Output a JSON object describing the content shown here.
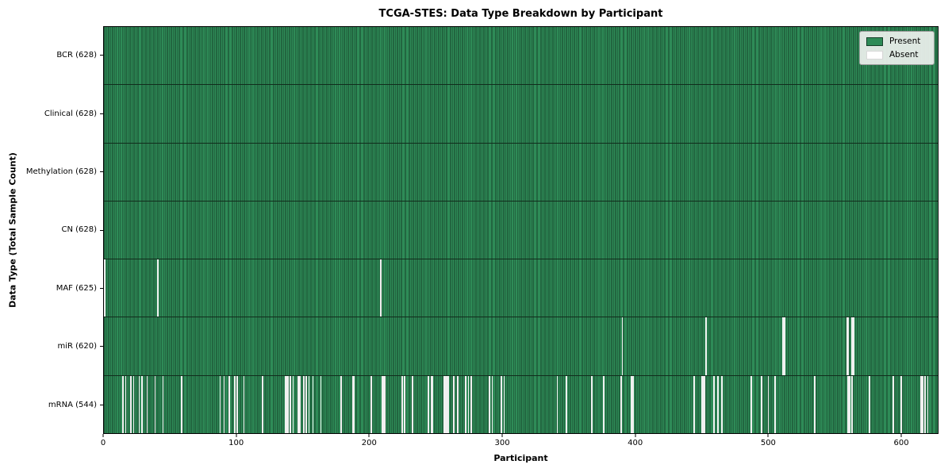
{
  "title": "TCGA-STES: Data Type Breakdown by Participant",
  "xlabel": "Participant",
  "ylabel": "Data Type (Total Sample Count)",
  "legend": {
    "present_label": "Present",
    "absent_label": "Absent"
  },
  "colors": {
    "present": "#2e8b57",
    "present_edge": "#16402a",
    "absent": "#f0f0f0",
    "row_divider": "#112c1c",
    "legend_bg": "#eef1ee",
    "axis": "#000000"
  },
  "chart_data": {
    "type": "heatmap",
    "title": "TCGA-STES: Data Type Breakdown by Participant",
    "xlabel": "Participant",
    "ylabel": "Data Type (Total Sample Count)",
    "legend": [
      "Present",
      "Absent"
    ],
    "legend_position": "upper right",
    "grid": false,
    "total_participants": 628,
    "x_ticks": [
      0,
      100,
      200,
      300,
      400,
      500,
      600
    ],
    "xlim": [
      0,
      628
    ],
    "rows": [
      {
        "label": "BCR (628)",
        "present_count": 628,
        "absent_participants": []
      },
      {
        "label": "Clinical (628)",
        "present_count": 628,
        "absent_participants": []
      },
      {
        "label": "Methylation (628)",
        "present_count": 628,
        "absent_participants": []
      },
      {
        "label": "CN (628)",
        "present_count": 628,
        "absent_participants": []
      },
      {
        "label": "MAF (625)",
        "present_count": 625,
        "absent_participants": [
          0,
          40,
          208
        ]
      },
      {
        "label": "miR (620)",
        "present_count": 620,
        "absent_participants": [
          390,
          453,
          511,
          512,
          559,
          560,
          563,
          564
        ]
      },
      {
        "label": "mRNA (544)",
        "present_count": 544,
        "absent_participants": [
          14,
          16,
          20,
          22,
          26,
          28,
          32,
          38,
          44,
          58,
          87,
          90,
          94,
          98,
          100,
          105,
          119,
          136,
          137,
          138,
          140,
          142,
          146,
          147,
          150,
          152,
          154,
          157,
          163,
          178,
          187,
          188,
          201,
          209,
          210,
          211,
          224,
          226,
          232,
          244,
          246,
          247,
          256,
          257,
          258,
          259,
          263,
          266,
          272,
          274,
          276,
          290,
          292,
          299,
          301,
          341,
          348,
          367,
          376,
          389,
          397,
          398,
          444,
          450,
          451,
          452,
          459,
          462,
          465,
          487,
          495,
          500,
          505,
          535,
          560,
          561,
          563,
          576,
          594,
          600,
          615,
          616,
          618,
          620
        ]
      }
    ]
  }
}
